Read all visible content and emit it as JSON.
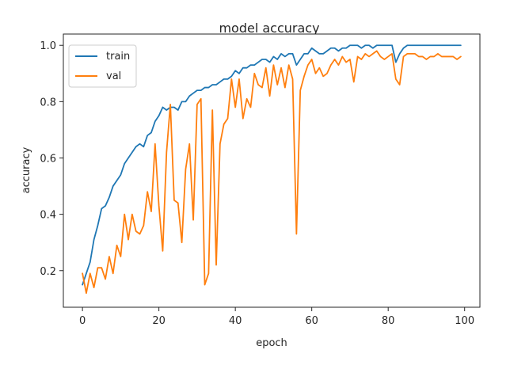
{
  "chart_data": {
    "type": "line",
    "title": "model accuracy",
    "xlabel": "epoch",
    "ylabel": "accuracy",
    "xlim": [
      -5,
      104
    ],
    "ylim": [
      0.07,
      1.04
    ],
    "xticks": [
      0,
      20,
      40,
      60,
      80,
      100
    ],
    "yticks": [
      0.2,
      0.4,
      0.6,
      0.8,
      1.0
    ],
    "grid": false,
    "legend_position": "top-left",
    "x": [
      0,
      1,
      2,
      3,
      4,
      5,
      6,
      7,
      8,
      9,
      10,
      11,
      12,
      13,
      14,
      15,
      16,
      17,
      18,
      19,
      20,
      21,
      22,
      23,
      24,
      25,
      26,
      27,
      28,
      29,
      30,
      31,
      32,
      33,
      34,
      35,
      36,
      37,
      38,
      39,
      40,
      41,
      42,
      43,
      44,
      45,
      46,
      47,
      48,
      49,
      50,
      51,
      52,
      53,
      54,
      55,
      56,
      57,
      58,
      59,
      60,
      61,
      62,
      63,
      64,
      65,
      66,
      67,
      68,
      69,
      70,
      71,
      72,
      73,
      74,
      75,
      76,
      77,
      78,
      79,
      80,
      81,
      82,
      83,
      84,
      85,
      86,
      87,
      88,
      89,
      90,
      91,
      92,
      93,
      94,
      95,
      96,
      97,
      98,
      99
    ],
    "series": [
      {
        "name": "train",
        "color": "#1f77b4",
        "values": [
          0.15,
          0.19,
          0.23,
          0.31,
          0.36,
          0.42,
          0.43,
          0.46,
          0.5,
          0.52,
          0.54,
          0.58,
          0.6,
          0.62,
          0.64,
          0.65,
          0.64,
          0.68,
          0.69,
          0.73,
          0.75,
          0.78,
          0.77,
          0.78,
          0.78,
          0.77,
          0.8,
          0.8,
          0.82,
          0.83,
          0.84,
          0.84,
          0.85,
          0.85,
          0.86,
          0.86,
          0.87,
          0.88,
          0.88,
          0.89,
          0.91,
          0.9,
          0.92,
          0.92,
          0.93,
          0.93,
          0.94,
          0.95,
          0.95,
          0.94,
          0.96,
          0.95,
          0.97,
          0.96,
          0.97,
          0.97,
          0.93,
          0.95,
          0.97,
          0.97,
          0.99,
          0.98,
          0.97,
          0.97,
          0.98,
          0.99,
          0.99,
          0.98,
          0.99,
          0.99,
          1.0,
          1.0,
          1.0,
          0.99,
          1.0,
          1.0,
          0.99,
          1.0,
          1.0,
          1.0,
          1.0,
          1.0,
          0.94,
          0.97,
          0.99,
          1.0,
          1.0,
          1.0,
          1.0,
          1.0,
          1.0,
          1.0,
          1.0,
          1.0,
          1.0,
          1.0,
          1.0,
          1.0,
          1.0,
          1.0
        ]
      },
      {
        "name": "val",
        "color": "#ff7f0e",
        "values": [
          0.19,
          0.12,
          0.19,
          0.14,
          0.21,
          0.21,
          0.17,
          0.25,
          0.19,
          0.29,
          0.25,
          0.4,
          0.31,
          0.4,
          0.34,
          0.33,
          0.36,
          0.48,
          0.41,
          0.65,
          0.43,
          0.27,
          0.62,
          0.79,
          0.45,
          0.44,
          0.3,
          0.56,
          0.65,
          0.38,
          0.79,
          0.81,
          0.15,
          0.19,
          0.77,
          0.22,
          0.65,
          0.72,
          0.74,
          0.88,
          0.78,
          0.88,
          0.74,
          0.81,
          0.78,
          0.9,
          0.86,
          0.85,
          0.92,
          0.82,
          0.93,
          0.86,
          0.92,
          0.85,
          0.93,
          0.88,
          0.33,
          0.84,
          0.89,
          0.93,
          0.95,
          0.9,
          0.92,
          0.89,
          0.9,
          0.93,
          0.95,
          0.93,
          0.96,
          0.94,
          0.95,
          0.87,
          0.96,
          0.95,
          0.97,
          0.96,
          0.97,
          0.98,
          0.96,
          0.95,
          0.96,
          0.97,
          0.88,
          0.86,
          0.96,
          0.97,
          0.97,
          0.97,
          0.96,
          0.96,
          0.95,
          0.96,
          0.96,
          0.97,
          0.96,
          0.96,
          0.96,
          0.96,
          0.95,
          0.96
        ]
      }
    ]
  }
}
